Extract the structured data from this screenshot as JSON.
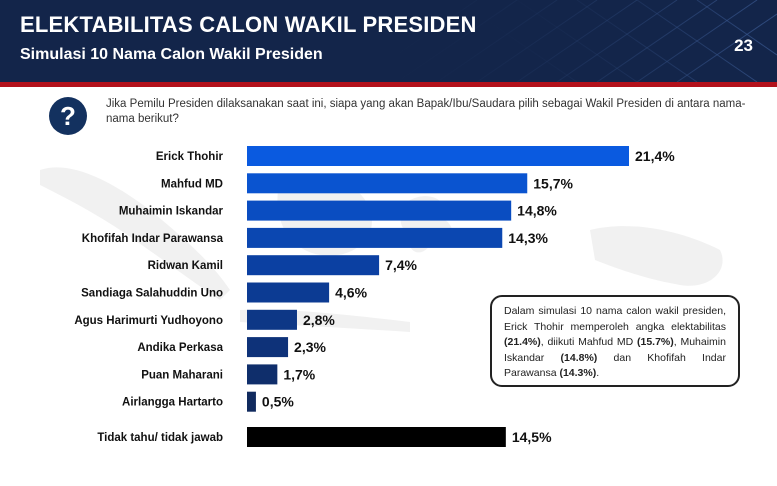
{
  "header": {
    "title": "ELEKTABILITAS CALON WAKIL PRESIDEN",
    "subtitle": "Simulasi 10 Nama Calon Wakil Presiden",
    "page_number": "23"
  },
  "question": {
    "icon": "question-mark-icon",
    "mark": "?",
    "text": "Jika Pemilu Presiden dilaksanakan saat ini, siapa yang akan Bapak/Ibu/Saudara pilih sebagai Wakil Presiden di antara nama-nama berikut?"
  },
  "note": {
    "part1": "Dalam simulasi 10 nama calon wakil presiden, Erick Thohir memperoleh angka elektabilitas ",
    "b1": "(21.4%)",
    "part2": ", diikuti Mahfud MD ",
    "b2": "(15.7%)",
    "part3": ", Muhaimin Iskandar ",
    "b3": "(14.8%)",
    "part4": " dan Khofifah Indar Parawansa ",
    "b4": "(14.3%)",
    "part5": "."
  },
  "colors": {
    "header_bg": "#13254a",
    "accent_red": "#b3111b",
    "bar_gradient": [
      "#0a5ae0",
      "#0b3d9a",
      "#102a5e"
    ],
    "bar_unknown": "#000000"
  },
  "chart_data": {
    "type": "bar",
    "orientation": "horizontal",
    "categories": [
      "Erick Thohir",
      "Mahfud MD",
      "Muhaimin Iskandar",
      "Khofifah Indar Parawansa",
      "Ridwan Kamil",
      "Sandiaga Salahuddin Uno",
      "Agus Harimurti Yudhoyono",
      "Andika Perkasa",
      "Puan Maharani",
      "Airlangga Hartarto",
      "Tidak tahu/ tidak jawab"
    ],
    "values": [
      21.4,
      15.7,
      14.8,
      14.3,
      7.4,
      4.6,
      2.8,
      2.3,
      1.7,
      0.5,
      14.5
    ],
    "labels": [
      "21,4%",
      "15,7%",
      "14,8%",
      "14,3%",
      "7,4%",
      "4,6%",
      "2,8%",
      "2,3%",
      "1,7%",
      "0,5%",
      "14,5%"
    ],
    "xlim": [
      0,
      21.4
    ],
    "grid": false,
    "legend": "none"
  }
}
